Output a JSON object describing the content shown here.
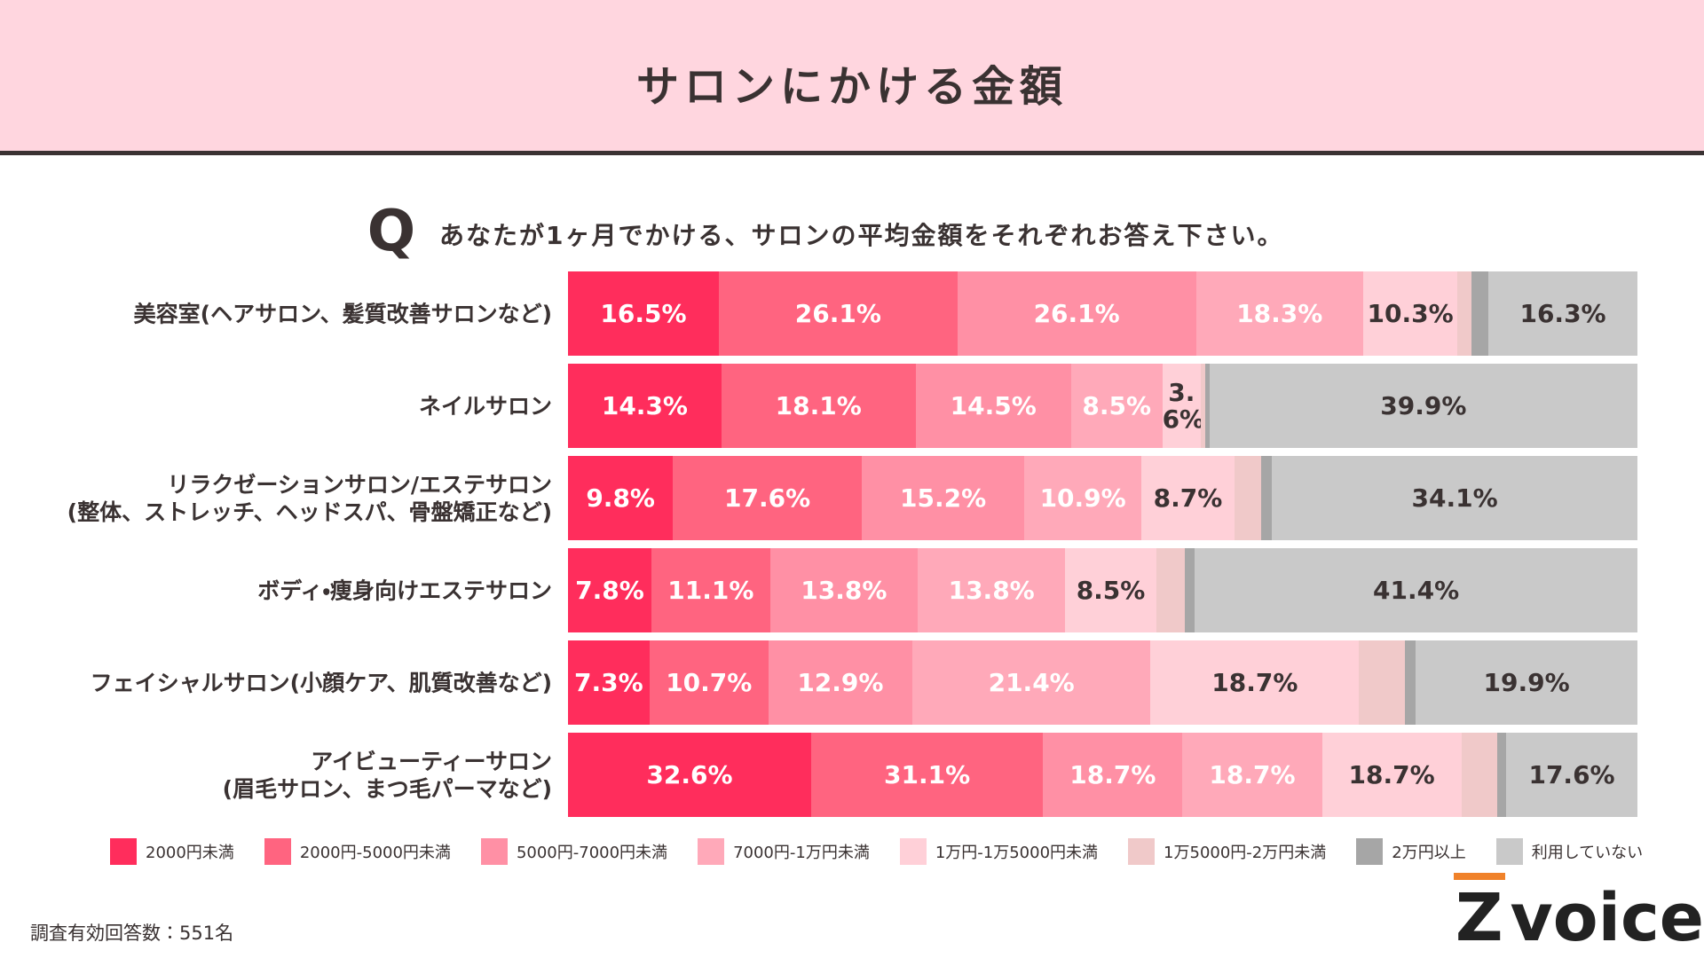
{
  "header": {
    "title": "サロンにかける金額"
  },
  "question": {
    "icon": "Q",
    "text": "あなたが1ヶ月でかける、サロンの平均金額をそれぞれお答え下さい。"
  },
  "chart_data": {
    "type": "bar",
    "orientation": "horizontal",
    "stacked": "percent",
    "categories": [
      "美容室(ヘアサロン、髪質改善サロンなど)",
      "ネイルサロン",
      "リラクゼーションサロン/エステサロン\n(整体、ストレッチ、ヘッドスパ、骨盤矯正など)",
      "ボディ・痩身向けエステサロン",
      "フェイシャルサロン(小顔ケア、肌質改善など)",
      "アイビューティーサロン\n(眉毛サロン、まつ毛パーマなど)"
    ],
    "series": [
      {
        "name": "2000円未満",
        "color": "#ff2d5c",
        "values": [
          16.5,
          14.3,
          9.8,
          7.8,
          7.3,
          32.6
        ],
        "value_labels": [
          "16.5%",
          "14.3%",
          "9.8%",
          "7.8%",
          "7.3%",
          "32.6%"
        ]
      },
      {
        "name": "2000円-5000円未満",
        "color": "#ff6480",
        "values": [
          26.1,
          18.1,
          17.6,
          11.1,
          10.7,
          31.1
        ],
        "value_labels": [
          "26.1%",
          "18.1%",
          "17.6%",
          "11.1%",
          "10.7%",
          "31.1%"
        ]
      },
      {
        "name": "5000円-7000円未満",
        "color": "#ff90a5",
        "values": [
          26.1,
          14.5,
          15.2,
          13.8,
          12.9,
          18.7
        ],
        "value_labels": [
          "26.1%",
          "14.5%",
          "15.2%",
          "13.8%",
          "12.9%",
          "18.7%"
        ]
      },
      {
        "name": "7000円-1万円未満",
        "color": "#ffa9b9",
        "values": [
          18.3,
          8.5,
          10.9,
          13.8,
          21.4,
          18.7
        ],
        "value_labels": [
          "18.3%",
          "8.5%",
          "10.9%",
          "13.8%",
          "21.4%",
          "18.7%"
        ]
      },
      {
        "name": "1万円-1万5000円未満",
        "color": "#ffd0d8",
        "values": [
          10.3,
          3.6,
          8.7,
          8.5,
          18.7,
          18.7
        ],
        "value_labels": [
          "10.3%",
          "3.6%",
          "8.7%",
          "8.5%",
          "18.7%",
          "18.7%"
        ]
      },
      {
        "name": "1万5000円-2万円未満",
        "color": "#f0c9c9",
        "values": [
          1.5,
          0.4,
          2.5,
          2.7,
          4.1,
          4.8
        ]
      },
      {
        "name": "2万円以上",
        "color": "#a6a6a6",
        "values": [
          1.9,
          0.4,
          1.0,
          0.9,
          1.0,
          1.2
        ]
      },
      {
        "name": "利用していない",
        "color": "#c9c9c9",
        "values": [
          16.3,
          39.9,
          34.1,
          41.4,
          19.9,
          17.6
        ],
        "value_labels": [
          "16.3%",
          "39.9%",
          "34.1%",
          "41.4%",
          "19.9%",
          "17.6%"
        ]
      }
    ]
  },
  "footer": {
    "note": "調査有効回答数：551名",
    "logo_mark": "Z",
    "logo_text": "voice"
  }
}
